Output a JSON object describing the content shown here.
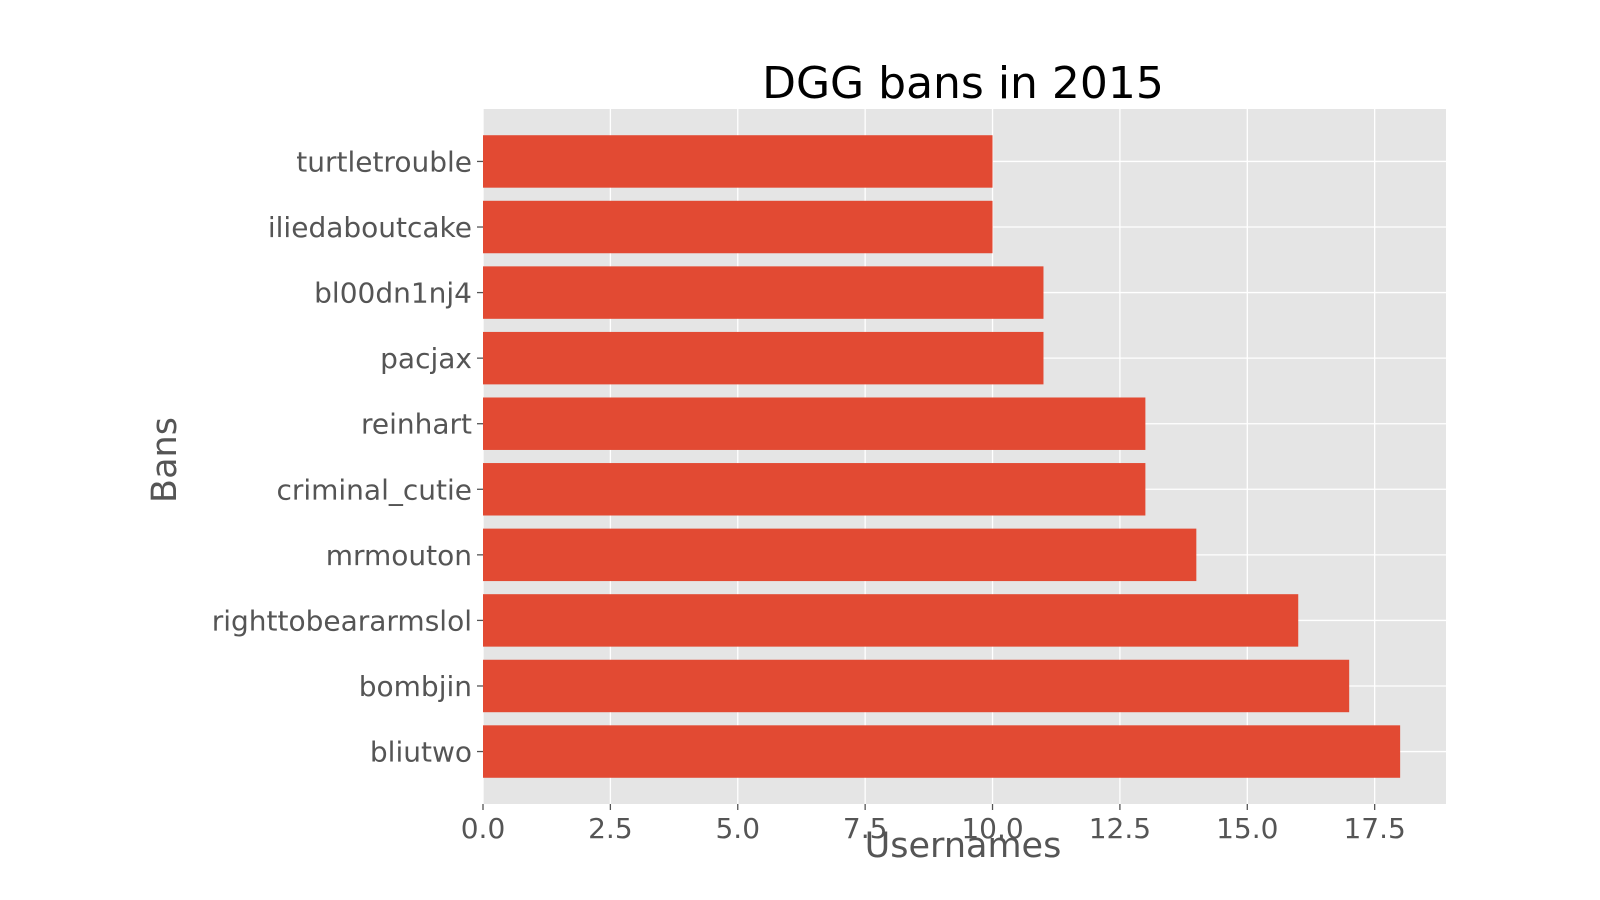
{
  "chart_data": {
    "type": "bar",
    "orientation": "horizontal",
    "title": "DGG bans in 2015",
    "xlabel": "Usernames",
    "ylabel": "Bans",
    "categories": [
      "turtletrouble",
      "iliedaboutcake",
      "bl00dn1nj4",
      "pacjax",
      "reinhart",
      "criminal_cutie",
      "mrmouton",
      "righttobeararmslol",
      "bombjin",
      "bliutwo"
    ],
    "values": [
      10,
      10,
      11,
      11,
      13,
      13,
      14,
      16,
      17,
      18
    ],
    "xlim": [
      0,
      18.9
    ],
    "xticks": [
      0,
      2.5,
      5,
      7.5,
      10,
      12.5,
      15,
      17.5
    ],
    "xtick_labels": [
      "0.0",
      "2.5",
      "5.0",
      "7.5",
      "10.0",
      "12.5",
      "15.0",
      "17.5"
    ],
    "grid": true,
    "background_color": "#e5e5e5",
    "bar_color": "#e24a33"
  }
}
